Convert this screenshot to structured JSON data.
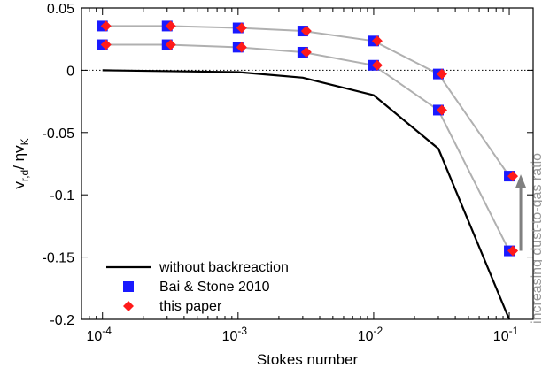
{
  "chart_data": {
    "type": "line",
    "xlabel": "Stokes number",
    "ylabel_main": "v",
    "ylabel_sub": "r,d",
    "ylabel_den_main": "/ ηv",
    "ylabel_den_sub": "K",
    "xscale": "log",
    "xlim": [
      7e-05,
      0.15
    ],
    "ylim": [
      -0.2,
      0.05
    ],
    "yticks": [
      {
        "value": 0.05,
        "label": "0.05"
      },
      {
        "value": 0,
        "label": "0"
      },
      {
        "value": -0.05,
        "label": "-0.05"
      },
      {
        "value": -0.1,
        "label": "-0.1"
      },
      {
        "value": -0.15,
        "label": "-0.15"
      },
      {
        "value": -0.2,
        "label": "-0.2"
      }
    ],
    "xticks": [
      {
        "value": 0.0001,
        "base": "10",
        "exp": "-4"
      },
      {
        "value": 0.001,
        "base": "10",
        "exp": "-3"
      },
      {
        "value": 0.01,
        "base": "10",
        "exp": "-2"
      },
      {
        "value": 0.1,
        "base": "10",
        "exp": "-1"
      }
    ],
    "zero_line": true,
    "colors": {
      "no_backreaction": "#000000",
      "connector": "#b0b0b0",
      "bai_stone": "#1a1aff",
      "this_paper": "#ff1a1a",
      "arrow": "#808080"
    },
    "series": [
      {
        "name": "without backreaction",
        "style": "line",
        "x": [
          0.0001,
          0.001,
          0.003,
          0.01,
          0.03,
          0.1
        ],
        "y": [
          0.0,
          -0.0015,
          -0.006,
          -0.02,
          -0.063,
          -0.2
        ]
      },
      {
        "name": "Bai & Stone 2010",
        "style": "square",
        "groups": [
          {
            "x": [
              0.0001,
              0.0003,
              0.001,
              0.003,
              0.01,
              0.03,
              0.1
            ],
            "y": [
              0.0355,
              0.0355,
              0.034,
              0.0315,
              0.0235,
              -0.003,
              -0.085
            ]
          },
          {
            "x": [
              0.0001,
              0.0003,
              0.001,
              0.003,
              0.01,
              0.03,
              0.1
            ],
            "y": [
              0.0205,
              0.0205,
              0.0185,
              0.0145,
              0.004,
              -0.032,
              -0.145
            ]
          }
        ]
      },
      {
        "name": "this paper",
        "style": "diamond",
        "groups": [
          {
            "x": [
              0.0001,
              0.0003,
              0.001,
              0.003,
              0.01,
              0.03,
              0.1
            ],
            "y": [
              0.0355,
              0.0355,
              0.034,
              0.0315,
              0.0235,
              -0.003,
              -0.085
            ]
          },
          {
            "x": [
              0.0001,
              0.0003,
              0.001,
              0.003,
              0.01,
              0.03,
              0.1
            ],
            "y": [
              0.0205,
              0.0205,
              0.0185,
              0.0145,
              0.004,
              -0.032,
              -0.145
            ]
          }
        ]
      }
    ],
    "legend": {
      "placement": "bottom-left",
      "entries": [
        "without backreaction",
        "Bai & Stone 2010",
        "this paper"
      ]
    },
    "annotation": {
      "text": "increasing dust-to-gas ratio",
      "arrow_from": -0.145,
      "arrow_to": -0.085
    }
  }
}
